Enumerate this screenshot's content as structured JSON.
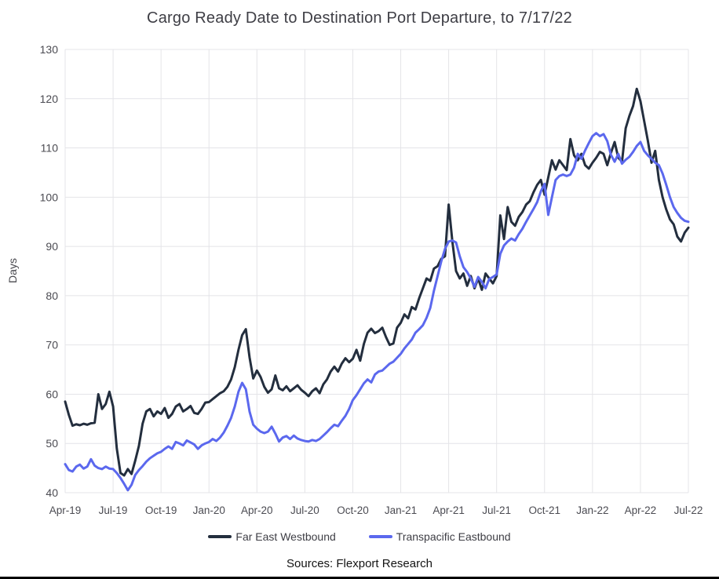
{
  "chart_data": {
    "type": "line",
    "title": "Cargo Ready Date to Destination Port Departure, to 7/17/22",
    "ylabel": "Days",
    "xlabel": "",
    "ylim": [
      40,
      130
    ],
    "y_ticks": [
      40,
      50,
      60,
      70,
      80,
      90,
      100,
      110,
      120,
      130
    ],
    "x_tick_labels": [
      "Apr-19",
      "Jul-19",
      "Oct-19",
      "Jan-20",
      "Apr-20",
      "Jul-20",
      "Oct-20",
      "Jan-21",
      "Apr-21",
      "Jul-21",
      "Oct-21",
      "Jan-22",
      "Apr-22",
      "Jul-22"
    ],
    "points_per_tick_interval": 13,
    "grid": true,
    "legend_position": "bottom",
    "colors": {
      "grid": "#e4e4e8",
      "tick_text": "#4b4b52",
      "title_text": "#3e3e45",
      "bottom_border": "#000000"
    },
    "series": [
      {
        "name": "Far East Westbound",
        "color": "#232e3e",
        "values": [
          58.5,
          55.8,
          53.6,
          53.9,
          53.7,
          54.0,
          53.8,
          54.1,
          54.2,
          60.0,
          57.0,
          58.0,
          60.5,
          57.5,
          49.0,
          44.0,
          43.5,
          44.8,
          43.8,
          46.5,
          49.5,
          54.0,
          56.5,
          57.0,
          55.5,
          56.5,
          56.0,
          57.2,
          55.2,
          56.0,
          57.5,
          58.0,
          56.5,
          57.0,
          57.6,
          56.2,
          56.0,
          57.0,
          58.3,
          58.4,
          59.0,
          59.6,
          60.2,
          60.6,
          61.5,
          63.0,
          65.5,
          69.0,
          72.0,
          73.2,
          67.5,
          63.2,
          64.8,
          63.5,
          61.5,
          60.3,
          61.0,
          63.8,
          61.2,
          60.8,
          61.6,
          60.6,
          61.2,
          61.8,
          60.9,
          60.3,
          59.6,
          60.6,
          61.2,
          60.2,
          62.0,
          63.0,
          64.6,
          65.6,
          64.6,
          66.2,
          67.3,
          66.5,
          67.2,
          69.0,
          66.8,
          70.2,
          72.5,
          73.3,
          72.4,
          72.8,
          73.5,
          71.6,
          70.0,
          70.3,
          73.5,
          74.5,
          76.2,
          75.4,
          77.7,
          77.2,
          79.5,
          81.5,
          83.5,
          83.0,
          85.5,
          86.0,
          87.5,
          88.0,
          98.5,
          91.0,
          85.0,
          83.5,
          84.5,
          82.0,
          84.0,
          81.5,
          83.5,
          81.2,
          84.5,
          83.5,
          82.5,
          84.0,
          96.3,
          91.5,
          98.0,
          95.0,
          94.2,
          96.0,
          97.0,
          98.5,
          99.2,
          101.0,
          102.5,
          103.5,
          100.5,
          104.0,
          107.5,
          105.6,
          107.5,
          106.5,
          105.5,
          111.8,
          108.5,
          107.5,
          108.8,
          106.5,
          105.8,
          107.0,
          108.0,
          109.2,
          108.8,
          106.5,
          109.0,
          111.2,
          108.0,
          107.2,
          114.0,
          116.5,
          118.5,
          122.0,
          119.5,
          115.5,
          111.5,
          107.0,
          109.4,
          103.5,
          100.0,
          97.5,
          95.5,
          94.5,
          92.0,
          91.0,
          92.8,
          93.8
        ]
      },
      {
        "name": "Transpacific Eastbound",
        "color": "#5b68ee",
        "values": [
          45.8,
          44.6,
          44.3,
          45.3,
          45.7,
          44.9,
          45.3,
          46.8,
          45.5,
          45.0,
          44.8,
          45.3,
          44.9,
          44.8,
          44.0,
          43.0,
          41.8,
          40.5,
          41.6,
          43.6,
          44.6,
          45.4,
          46.3,
          47.0,
          47.5,
          48.0,
          48.3,
          48.9,
          49.4,
          48.9,
          50.3,
          50.0,
          49.6,
          50.6,
          50.2,
          49.8,
          48.9,
          49.6,
          50.0,
          50.3,
          50.9,
          50.5,
          51.2,
          52.2,
          53.6,
          55.2,
          57.5,
          60.5,
          62.3,
          61.0,
          56.5,
          53.8,
          53.0,
          52.4,
          52.1,
          52.4,
          53.4,
          52.0,
          50.4,
          51.2,
          51.5,
          50.9,
          51.6,
          51.0,
          50.7,
          50.5,
          50.4,
          50.7,
          50.5,
          50.9,
          51.6,
          52.3,
          53.1,
          53.8,
          53.5,
          54.6,
          55.6,
          57.0,
          58.8,
          59.8,
          61.0,
          62.2,
          63.0,
          62.4,
          64.0,
          64.6,
          64.8,
          65.5,
          66.2,
          66.6,
          67.4,
          68.2,
          69.3,
          70.2,
          71.1,
          72.5,
          73.2,
          74.0,
          75.5,
          77.5,
          81.0,
          84.0,
          87.0,
          89.5,
          91.0,
          91.2,
          90.8,
          88.0,
          85.8,
          84.8,
          83.5,
          81.8,
          83.8,
          82.8,
          81.5,
          83.4,
          83.8,
          84.3,
          88.5,
          90.2,
          91.0,
          91.6,
          91.2,
          92.5,
          93.6,
          95.0,
          96.3,
          97.6,
          99.0,
          101.2,
          102.7,
          96.4,
          100.0,
          103.5,
          104.3,
          104.6,
          104.3,
          104.6,
          106.0,
          108.8,
          107.8,
          109.5,
          111.0,
          112.4,
          113.0,
          112.4,
          112.8,
          111.4,
          108.6,
          107.2,
          108.8,
          106.8,
          107.6,
          108.2,
          109.2,
          110.4,
          111.2,
          109.4,
          108.5,
          107.8,
          107.0,
          106.5,
          104.8,
          102.5,
          100.0,
          98.0,
          96.8,
          95.8,
          95.2,
          95.0
        ]
      }
    ],
    "sources": "Sources: Flexport Research"
  }
}
